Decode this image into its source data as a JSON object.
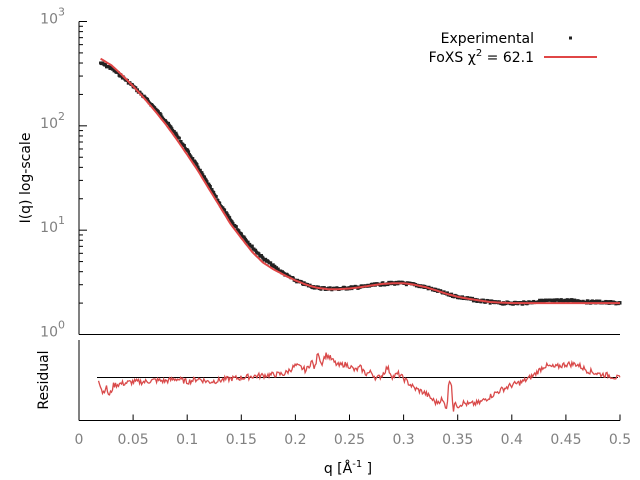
{
  "chart_data": [
    {
      "type": "scatter",
      "panel": "main",
      "ylabel": "I(q) log-scale",
      "y_scale": "log",
      "ylim": [
        1,
        1000
      ],
      "xlim": [
        0,
        0.5
      ],
      "y_tick_labels": [
        {
          "base": "10",
          "exp": "0"
        },
        {
          "base": "10",
          "exp": "1"
        },
        {
          "base": "10",
          "exp": "2"
        },
        {
          "base": "10",
          "exp": "3"
        }
      ],
      "legend": {
        "placement": "top-right",
        "entries": [
          {
            "name": "Experimental",
            "text": "Experimental",
            "marker": "point",
            "color": "#222222"
          },
          {
            "name": "FoXS",
            "text_before": "FoXS χ",
            "sup": "2",
            "text_after": " = 62.1",
            "marker": "line",
            "color": "#e04646"
          }
        ]
      },
      "series": [
        {
          "name": "Experimental",
          "style": "points",
          "color": "#222222",
          "x": [
            0.02,
            0.03,
            0.04,
            0.05,
            0.06,
            0.07,
            0.08,
            0.09,
            0.1,
            0.11,
            0.12,
            0.13,
            0.14,
            0.15,
            0.16,
            0.17,
            0.18,
            0.19,
            0.2,
            0.21,
            0.22,
            0.23,
            0.24,
            0.25,
            0.26,
            0.27,
            0.28,
            0.29,
            0.3,
            0.31,
            0.32,
            0.33,
            0.34,
            0.35,
            0.36,
            0.37,
            0.38,
            0.39,
            0.4,
            0.41,
            0.42,
            0.43,
            0.44,
            0.45,
            0.46,
            0.47,
            0.48,
            0.49,
            0.5
          ],
          "y": [
            400,
            355,
            295,
            240,
            190,
            148,
            112,
            82,
            58,
            40,
            27,
            18,
            12.5,
            9.2,
            6.9,
            5.4,
            4.5,
            3.8,
            3.3,
            3.0,
            2.8,
            2.75,
            2.75,
            2.8,
            2.85,
            2.95,
            3.05,
            3.1,
            3.1,
            3.0,
            2.85,
            2.65,
            2.45,
            2.3,
            2.2,
            2.1,
            2.05,
            2.0,
            2.0,
            2.0,
            2.05,
            2.1,
            2.1,
            2.12,
            2.1,
            2.05,
            2.05,
            2.02,
            2.0
          ]
        },
        {
          "name": "FoXS",
          "style": "line",
          "color": "#e04646",
          "x": [
            0.02,
            0.03,
            0.04,
            0.05,
            0.06,
            0.07,
            0.08,
            0.09,
            0.1,
            0.11,
            0.12,
            0.13,
            0.14,
            0.15,
            0.16,
            0.17,
            0.18,
            0.19,
            0.2,
            0.21,
            0.22,
            0.23,
            0.24,
            0.25,
            0.26,
            0.27,
            0.28,
            0.29,
            0.3,
            0.31,
            0.32,
            0.33,
            0.34,
            0.35,
            0.36,
            0.37,
            0.38,
            0.39,
            0.4,
            0.41,
            0.42,
            0.43,
            0.44,
            0.45,
            0.46,
            0.47,
            0.48,
            0.49,
            0.5
          ],
          "y": [
            440,
            380,
            305,
            240,
            185,
            140,
            104,
            75,
            53,
            37,
            25,
            17,
            11.5,
            8.4,
            6.2,
            4.9,
            4.2,
            3.7,
            3.3,
            3.0,
            2.8,
            2.72,
            2.72,
            2.76,
            2.84,
            2.95,
            3.05,
            3.1,
            3.1,
            3.0,
            2.85,
            2.65,
            2.45,
            2.3,
            2.2,
            2.12,
            2.05,
            2.02,
            2.0,
            2.0,
            2.0,
            2.0,
            2.0,
            2.0,
            2.0,
            2.0,
            2.0,
            2.0,
            2.0
          ]
        }
      ]
    },
    {
      "type": "line",
      "panel": "residual",
      "ylabel": "Residual",
      "xlabel_text": "q [Å",
      "xlabel_sup": "-1",
      "xlabel_close": " ]",
      "xlim": [
        0,
        0.5
      ],
      "ylim": [
        -2.5,
        2.5
      ],
      "x_ticks": [
        0,
        0.05,
        0.1,
        0.15,
        0.2,
        0.25,
        0.3,
        0.35,
        0.4,
        0.45,
        0.5
      ],
      "x_tick_labels": [
        "0",
        "0.05",
        "0.1",
        "0.15",
        "0.2",
        "0.25",
        "0.3",
        "0.35",
        "0.4",
        "0.45",
        "0.5"
      ],
      "baseline": 0,
      "series": [
        {
          "name": "",
          "color": "#d94a4a",
          "x": [
            0.018,
            0.022,
            0.025,
            0.028,
            0.032,
            0.04,
            0.05,
            0.06,
            0.07,
            0.08,
            0.09,
            0.1,
            0.11,
            0.12,
            0.13,
            0.14,
            0.15,
            0.16,
            0.17,
            0.18,
            0.19,
            0.2,
            0.205,
            0.21,
            0.215,
            0.218,
            0.221,
            0.224,
            0.228,
            0.232,
            0.236,
            0.24,
            0.245,
            0.25,
            0.255,
            0.26,
            0.265,
            0.27,
            0.275,
            0.28,
            0.285,
            0.29,
            0.295,
            0.3,
            0.31,
            0.32,
            0.33,
            0.335,
            0.34,
            0.342,
            0.344,
            0.346,
            0.348,
            0.35,
            0.355,
            0.36,
            0.37,
            0.38,
            0.39,
            0.4,
            0.41,
            0.42,
            0.43,
            0.44,
            0.45,
            0.46,
            0.47,
            0.48,
            0.49,
            0.5
          ],
          "y": [
            0.1,
            -0.8,
            -0.4,
            -1.0,
            -0.3,
            -0.2,
            -0.1,
            -0.1,
            0.0,
            -0.05,
            0.1,
            -0.1,
            0.1,
            -0.1,
            0.0,
            0.1,
            0.15,
            0.25,
            0.3,
            0.35,
            0.4,
            0.9,
            0.8,
            0.6,
            1.2,
            0.7,
            1.8,
            1.0,
            1.6,
            1.4,
            1.1,
            0.9,
            1.0,
            0.9,
            0.6,
            0.8,
            0.4,
            0.5,
            0.1,
            0.3,
            0.8,
            0.2,
            0.4,
            0.1,
            -0.5,
            -0.8,
            -1.4,
            -1.2,
            -1.7,
            0.0,
            0.0,
            -2.0,
            -1.3,
            -1.6,
            -1.4,
            -1.5,
            -1.4,
            -1.0,
            -0.6,
            -0.3,
            -0.1,
            0.3,
            0.9,
            0.8,
            1.0,
            1.0,
            0.6,
            0.4,
            0.3,
            0.1
          ]
        }
      ]
    }
  ]
}
